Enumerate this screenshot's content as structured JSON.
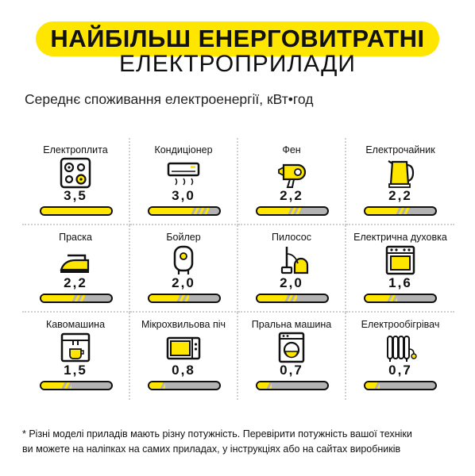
{
  "header": {
    "title_line1": "НАЙБІЛЬШ ЕНЕРГОВИТРАТНІ",
    "title_line2": "ЕЛЕКТРОПРИЛАДИ",
    "subtitle": "Середнє споживання електроенергії, кВт•год"
  },
  "accent_color": "#ffe600",
  "bar_track_color": "#b3b3b3",
  "bar_max": 3.5,
  "appliances": [
    {
      "label": "Електроплита",
      "value": "3,5",
      "level": 3.5,
      "icon": "electric-stove-icon"
    },
    {
      "label": "Кондиціонер",
      "value": "3,0",
      "level": 3.0,
      "icon": "air-conditioner-icon"
    },
    {
      "label": "Фен",
      "value": "2,2",
      "level": 2.2,
      "icon": "hair-dryer-icon"
    },
    {
      "label": "Електрочайник",
      "value": "2,2",
      "level": 2.2,
      "icon": "electric-kettle-icon"
    },
    {
      "label": "Праска",
      "value": "2,2",
      "level": 2.2,
      "icon": "iron-icon"
    },
    {
      "label": "Бойлер",
      "value": "2,0",
      "level": 2.0,
      "icon": "water-heater-icon"
    },
    {
      "label": "Пилосос",
      "value": "2,0",
      "level": 2.0,
      "icon": "vacuum-cleaner-icon"
    },
    {
      "label": "Електрична духовка",
      "value": "1,6",
      "level": 1.6,
      "icon": "oven-icon"
    },
    {
      "label": "Кавомашина",
      "value": "1,5",
      "level": 1.5,
      "icon": "coffee-machine-icon"
    },
    {
      "label": "Мікрохвильова піч",
      "value": "0,8",
      "level": 0.8,
      "icon": "microwave-icon"
    },
    {
      "label": "Пральна машина",
      "value": "0,7",
      "level": 0.7,
      "icon": "washing-machine-icon"
    },
    {
      "label": "Електрообігрівач",
      "value": "0,7",
      "level": 0.7,
      "icon": "oil-heater-icon"
    }
  ],
  "footnote": {
    "line1": "* Різні моделі приладів мають різну потужність.  Перевірити потужність вашої техніки",
    "line2": "ви можете на наліпках на самих приладах, у інструкціях або на сайтах виробників"
  }
}
